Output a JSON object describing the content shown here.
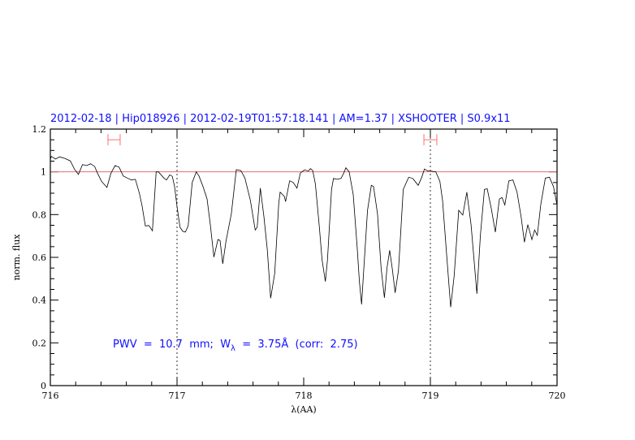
{
  "chart_data": {
    "type": "line",
    "title": "2012-02-18 | Hip018926 | 2012-02-19T01:57:18.141 | AM=1.37 | XSHOOTER | S0.9x11",
    "xlabel": "λ(AA)",
    "ylabel": "norm. flux",
    "xlim": [
      716,
      720
    ],
    "ylim": [
      0,
      1.2
    ],
    "x_ticks": [
      "716",
      "717",
      "718",
      "719",
      "720"
    ],
    "y_ticks": [
      "0",
      "0.2",
      "0.4",
      "0.6",
      "0.8",
      "1",
      "1.2"
    ],
    "grid": false,
    "reference_line": {
      "y": 1.0,
      "color": "#e07070"
    },
    "vertical_dotted_lines": [
      717,
      719
    ],
    "ranges": [
      {
        "x": [
          716.455,
          716.551
        ],
        "y": 1.15,
        "color": "#ff7070"
      },
      {
        "x": [
          718.949,
          719.051
        ],
        "y": 1.15,
        "color": "#ff7070"
      }
    ],
    "annotation": {
      "prefix": "PWV  =  10.7  mm;  W",
      "subscript": "λ",
      "suffix": "  =  3.75Å  (corr:  2.75)"
    },
    "title_color": "#1010ff",
    "series": [
      {
        "color": "#000000",
        "x": [
          716.0,
          716.008,
          716.041,
          716.073,
          716.115,
          716.158,
          716.19,
          716.222,
          716.254,
          716.286,
          716.318,
          716.35,
          716.372,
          716.404,
          716.447,
          716.479,
          716.511,
          716.543,
          716.575,
          716.607,
          716.639,
          716.671,
          716.703,
          716.724,
          716.75,
          716.778,
          716.806,
          716.835,
          716.853,
          716.896,
          716.917,
          716.942,
          716.963,
          716.981,
          717.002,
          717.024,
          717.045,
          717.066,
          717.088,
          717.12,
          717.152,
          717.173,
          717.205,
          717.237,
          717.263,
          717.291,
          717.323,
          717.34,
          717.361,
          717.387,
          717.429,
          717.468,
          717.504,
          717.536,
          717.579,
          717.617,
          717.633,
          717.658,
          717.686,
          717.712,
          717.739,
          717.771,
          717.803,
          717.814,
          717.846,
          717.857,
          717.889,
          717.917,
          717.947,
          717.974,
          718.006,
          718.038,
          718.053,
          718.071,
          718.092,
          718.124,
          718.145,
          718.171,
          718.188,
          718.22,
          718.235,
          718.263,
          718.295,
          718.316,
          718.333,
          718.359,
          718.391,
          718.423,
          718.44,
          718.457,
          718.476,
          718.504,
          718.534,
          718.551,
          718.583,
          718.611,
          718.637,
          718.658,
          718.679,
          718.701,
          718.722,
          718.748,
          718.786,
          718.829,
          718.861,
          718.904,
          718.932,
          718.953,
          718.979,
          719.0,
          719.043,
          719.075,
          719.096,
          719.128,
          719.16,
          719.188,
          719.224,
          719.256,
          719.288,
          719.321,
          719.367,
          719.395,
          719.427,
          719.449,
          719.481,
          719.513,
          719.545,
          719.566,
          719.588,
          719.62,
          719.652,
          719.684,
          719.716,
          719.742,
          719.769,
          719.801,
          719.823,
          719.844,
          719.872,
          719.908,
          719.94,
          719.972,
          720.0
        ],
        "y": [
          1.06,
          1.072,
          1.06,
          1.07,
          1.063,
          1.051,
          1.013,
          0.988,
          1.034,
          1.029,
          1.038,
          1.025,
          0.994,
          0.956,
          0.927,
          0.994,
          1.029,
          1.022,
          0.981,
          0.971,
          0.962,
          0.965,
          0.899,
          0.842,
          0.747,
          0.749,
          0.724,
          1.0,
          1.0,
          0.971,
          0.962,
          0.986,
          0.979,
          0.931,
          0.829,
          0.741,
          0.722,
          0.718,
          0.747,
          0.95,
          1.0,
          0.981,
          0.931,
          0.873,
          0.753,
          0.601,
          0.683,
          0.679,
          0.57,
          0.677,
          0.804,
          1.01,
          1.006,
          0.971,
          0.867,
          0.728,
          0.741,
          0.924,
          0.791,
          0.639,
          0.409,
          0.525,
          0.854,
          0.905,
          0.886,
          0.861,
          0.958,
          0.95,
          0.924,
          0.994,
          1.009,
          1.004,
          1.015,
          1.006,
          0.943,
          0.741,
          0.589,
          0.487,
          0.589,
          0.918,
          0.969,
          0.965,
          0.969,
          0.994,
          1.019,
          1.0,
          0.893,
          0.639,
          0.487,
          0.38,
          0.563,
          0.82,
          0.937,
          0.931,
          0.804,
          0.551,
          0.411,
          0.551,
          0.633,
          0.538,
          0.434,
          0.538,
          0.918,
          0.975,
          0.969,
          0.937,
          0.975,
          1.013,
          1.004,
          1.004,
          1.0,
          0.956,
          0.867,
          0.614,
          0.367,
          0.513,
          0.82,
          0.798,
          0.905,
          0.753,
          0.43,
          0.703,
          0.918,
          0.921,
          0.829,
          0.718,
          0.873,
          0.88,
          0.845,
          0.958,
          0.962,
          0.905,
          0.791,
          0.671,
          0.753,
          0.683,
          0.728,
          0.703,
          0.848,
          0.971,
          0.975,
          0.931,
          0.845
        ]
      }
    ]
  }
}
